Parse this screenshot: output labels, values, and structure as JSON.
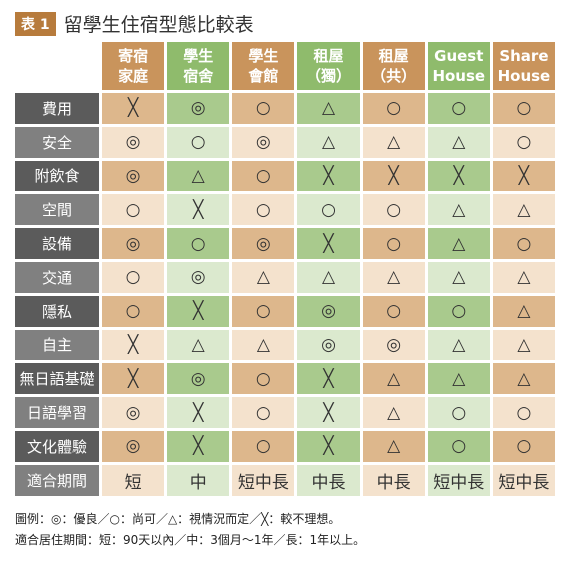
{
  "header": {
    "badge": "表 1",
    "title": "留學生住宿型態比較表"
  },
  "table": {
    "columns": [
      [
        "寄宿",
        "家庭"
      ],
      [
        "學生",
        "宿舍"
      ],
      [
        "學生",
        "會館"
      ],
      [
        "租屋",
        "（獨）"
      ],
      [
        "租屋",
        "（共）"
      ],
      [
        "Guest",
        "House"
      ],
      [
        "Share",
        "House"
      ]
    ],
    "rows": [
      {
        "label": "費用",
        "cells": [
          "╳",
          "◎",
          "○",
          "△",
          "○",
          "○",
          "○"
        ]
      },
      {
        "label": "安全",
        "cells": [
          "◎",
          "○",
          "◎",
          "△",
          "△",
          "△",
          "○"
        ]
      },
      {
        "label": "附飲食",
        "cells": [
          "◎",
          "△",
          "○",
          "╳",
          "╳",
          "╳",
          "╳"
        ]
      },
      {
        "label": "空間",
        "cells": [
          "○",
          "╳",
          "○",
          "○",
          "○",
          "△",
          "△"
        ]
      },
      {
        "label": "設備",
        "cells": [
          "◎",
          "○",
          "◎",
          "╳",
          "○",
          "△",
          "○"
        ]
      },
      {
        "label": "交通",
        "cells": [
          "○",
          "◎",
          "△",
          "△",
          "△",
          "△",
          "△"
        ]
      },
      {
        "label": "隱私",
        "cells": [
          "○",
          "╳",
          "○",
          "◎",
          "○",
          "○",
          "△"
        ]
      },
      {
        "label": "自主",
        "cells": [
          "╳",
          "△",
          "△",
          "◎",
          "◎",
          "△",
          "△"
        ]
      },
      {
        "label": "無日語基礎",
        "cells": [
          "╳",
          "◎",
          "○",
          "╳",
          "△",
          "△",
          "△"
        ]
      },
      {
        "label": "日語學習",
        "cells": [
          "◎",
          "╳",
          "○",
          "╳",
          "△",
          "○",
          "○"
        ]
      },
      {
        "label": "文化體驗",
        "cells": [
          "◎",
          "╳",
          "○",
          "╳",
          "△",
          "○",
          "○"
        ]
      },
      {
        "label": "適合期間",
        "cells": [
          "短",
          "中",
          "短中長",
          "中長",
          "中長",
          "短中長",
          "短中長"
        ]
      }
    ]
  },
  "notes": [
    "圖例：◎：優良／○：尚可／△：視情況而定／╳：較不理想。",
    "適合居住期間：短：90天以內／中：3個月～1年／長：1年以上。"
  ]
}
